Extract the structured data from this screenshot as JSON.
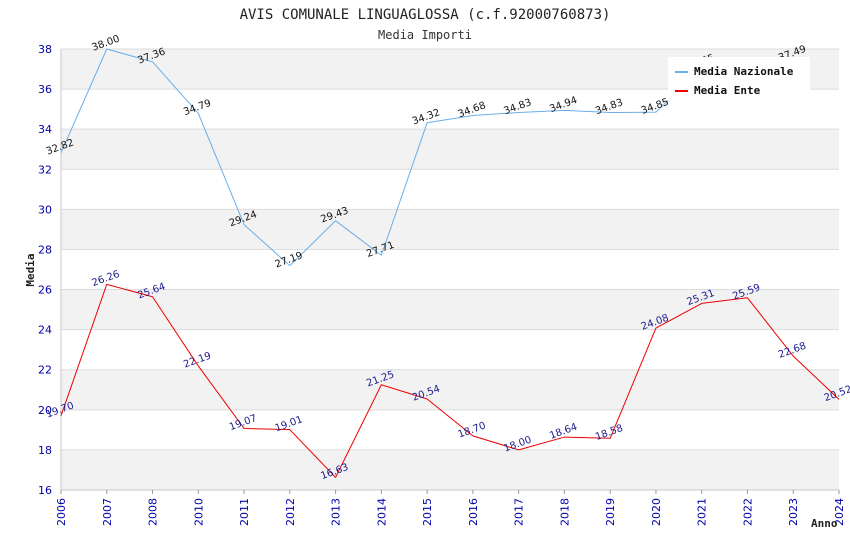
{
  "chart_data": {
    "type": "line",
    "title": "AVIS COMUNALE LINGUAGLOSSA (c.f.92000760873)",
    "subtitle": "Media Importi",
    "xlabel": "Anno",
    "ylabel": "Media",
    "ylim": [
      16,
      38
    ],
    "ytick_step": 2,
    "grid": true,
    "legend_position": "top-right",
    "categories": [
      "2006",
      "2007",
      "2008",
      "2010",
      "2011",
      "2012",
      "2013",
      "2014",
      "2015",
      "2016",
      "2017",
      "2018",
      "2019",
      "2020",
      "2021",
      "2022",
      "2023",
      "2024"
    ],
    "series": [
      {
        "name": "Media Nazionale",
        "color": "#6aaee8",
        "label_color": "#111111",
        "values": [
          32.82,
          38.0,
          37.36,
          34.79,
          29.24,
          27.19,
          29.43,
          27.71,
          34.32,
          34.68,
          34.83,
          34.94,
          34.83,
          34.85,
          37.05,
          37.16,
          37.49,
          null
        ],
        "labels": [
          "32.82",
          "38.00",
          "37.36",
          "34.79",
          "29.24",
          "27.19",
          "29.43",
          "27.71",
          "34.32",
          "34.68",
          "34.83",
          "34.94",
          "34.83",
          "34.85",
          "37.05",
          "",
          "37.49",
          ""
        ]
      },
      {
        "name": "Media Ente",
        "color": "#ee0000",
        "label_color": "#1a1a8c",
        "values": [
          19.7,
          26.26,
          25.64,
          22.19,
          19.07,
          19.01,
          16.63,
          21.25,
          20.54,
          18.7,
          18.0,
          18.64,
          18.58,
          24.08,
          25.31,
          25.59,
          22.68,
          20.52
        ],
        "labels": [
          "19.70",
          "26.26",
          "25.64",
          "22.19",
          "19.07",
          "19.01",
          "16.63",
          "21.25",
          "20.54",
          "18.70",
          "18.00",
          "18.64",
          "18.58",
          "24.08",
          "25.31",
          "25.59",
          "22.68",
          "20.52"
        ]
      }
    ]
  }
}
